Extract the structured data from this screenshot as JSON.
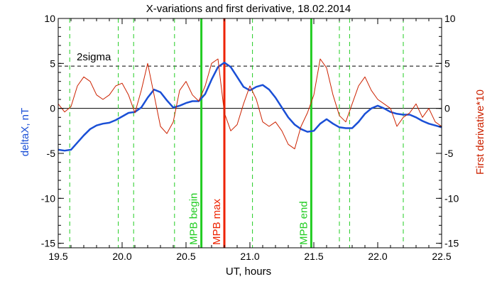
{
  "chart_data": {
    "type": "line",
    "title": "X-variations and first derivative, 18.02.2014",
    "xlabel": "UT, hours",
    "ylabel_left": "deltaX, nT",
    "ylabel_right": "First derivative*10",
    "xlim": [
      19.5,
      22.5
    ],
    "ylim": [
      -15.5,
      10
    ],
    "xticks": [
      "19.5",
      "20.0",
      "20.5",
      "21.0",
      "21.5",
      "22.0",
      "22.5"
    ],
    "yticks": [
      "10",
      "5",
      "0",
      "-5",
      "-10",
      "-15"
    ],
    "legend": "none",
    "colors": {
      "deltax": "#1a4fd6",
      "derivative": "#cc2200",
      "mpb_bounds": "#22cc22",
      "mpb_max": "#ee2200",
      "dashed_green": "#22cc22"
    },
    "two_sigma": {
      "label": "2sigma",
      "value": 4.7
    },
    "zero_line": 0,
    "series": [
      {
        "key": "deltax",
        "x": [
          19.5,
          19.55,
          19.6,
          19.65,
          19.7,
          19.75,
          19.8,
          19.85,
          19.9,
          19.95,
          20.0,
          20.05,
          20.1,
          20.15,
          20.2,
          20.25,
          20.3,
          20.35,
          20.4,
          20.45,
          20.5,
          20.55,
          20.6,
          20.65,
          20.7,
          20.75,
          20.8,
          20.85,
          20.9,
          20.95,
          21.0,
          21.05,
          21.1,
          21.15,
          21.2,
          21.25,
          21.3,
          21.35,
          21.4,
          21.45,
          21.5,
          21.55,
          21.6,
          21.65,
          21.7,
          21.75,
          21.8,
          21.85,
          21.9,
          21.95,
          22.0,
          22.05,
          22.1,
          22.15,
          22.2,
          22.25,
          22.3,
          22.35,
          22.4,
          22.45,
          22.5
        ],
        "values": [
          -4.6,
          -4.7,
          -4.6,
          -3.8,
          -3.0,
          -2.3,
          -1.9,
          -1.7,
          -1.6,
          -1.3,
          -0.9,
          -0.5,
          -0.4,
          0.1,
          1.2,
          2.1,
          1.8,
          0.9,
          0.1,
          0.3,
          0.6,
          0.8,
          0.8,
          1.6,
          3.2,
          4.6,
          5.1,
          4.6,
          3.5,
          2.4,
          2.0,
          2.4,
          2.6,
          2.1,
          1.2,
          0.1,
          -1.0,
          -1.8,
          -2.3,
          -2.6,
          -2.5,
          -1.7,
          -1.2,
          -1.7,
          -2.1,
          -2.2,
          -2.2,
          -1.5,
          -0.6,
          0.0,
          0.3,
          0.0,
          -0.4,
          -0.6,
          -0.7,
          -0.7,
          -1.0,
          -1.4,
          -1.7,
          -1.9,
          -2.1
        ]
      },
      {
        "key": "derivative",
        "x": [
          19.5,
          19.55,
          19.6,
          19.65,
          19.7,
          19.75,
          19.8,
          19.85,
          19.9,
          19.95,
          20.0,
          20.05,
          20.1,
          20.15,
          20.2,
          20.25,
          20.3,
          20.35,
          20.4,
          20.45,
          20.5,
          20.55,
          20.6,
          20.65,
          20.7,
          20.75,
          20.8,
          20.85,
          20.9,
          20.95,
          21.0,
          21.05,
          21.1,
          21.15,
          21.2,
          21.25,
          21.3,
          21.35,
          21.4,
          21.45,
          21.5,
          21.55,
          21.6,
          21.65,
          21.7,
          21.75,
          21.8,
          21.85,
          21.9,
          21.95,
          22.0,
          22.05,
          22.1,
          22.15,
          22.2,
          22.25,
          22.3,
          22.35,
          22.4,
          22.45,
          22.5
        ],
        "values": [
          0.5,
          -0.4,
          0.2,
          2.5,
          3.5,
          3.0,
          1.5,
          1.0,
          1.5,
          2.5,
          2.8,
          1.5,
          -0.5,
          2.0,
          5.0,
          1.5,
          -2.0,
          -2.8,
          -1.5,
          2.0,
          3.0,
          1.5,
          0.8,
          2.5,
          5.0,
          5.5,
          -0.5,
          -2.5,
          -1.8,
          0.5,
          2.5,
          1.0,
          -1.5,
          -2.0,
          -1.5,
          -2.5,
          -4.0,
          -4.5,
          -2.0,
          -0.5,
          1.5,
          5.5,
          4.5,
          1.5,
          -0.8,
          -1.5,
          0.5,
          2.5,
          3.5,
          2.0,
          1.0,
          0.5,
          0.0,
          -2.0,
          -1.0,
          -0.5,
          0.5,
          -1.0,
          0.0,
          -1.5,
          -2.0
        ]
      }
    ],
    "vertical_lines": [
      {
        "key": "mpb_begin",
        "x": 20.62,
        "label": "MPB begin",
        "style": "solid"
      },
      {
        "key": "mpb_max",
        "x": 20.8,
        "label": "MPB max",
        "style": "solid"
      },
      {
        "key": "mpb_end",
        "x": 21.48,
        "label": "MPB end",
        "style": "solid"
      }
    ],
    "dashed_verticals": [
      19.59,
      19.97,
      20.09,
      20.41,
      21.02,
      21.7,
      21.78,
      22.2
    ]
  }
}
